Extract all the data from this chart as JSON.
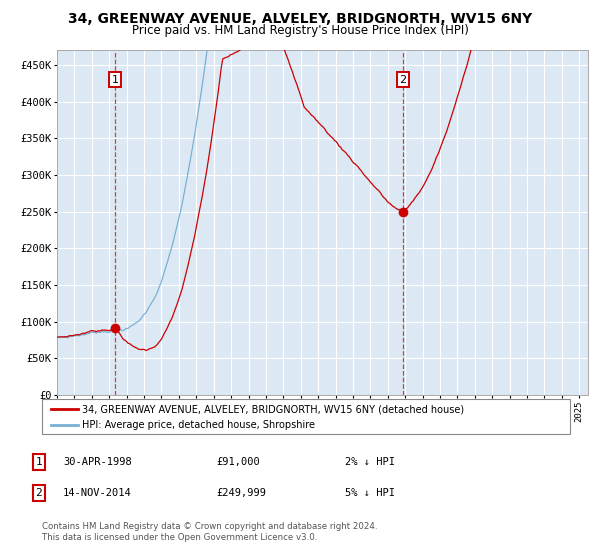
{
  "title": "34, GREENWAY AVENUE, ALVELEY, BRIDGNORTH, WV15 6NY",
  "subtitle": "Price paid vs. HM Land Registry's House Price Index (HPI)",
  "title_fontsize": 10,
  "subtitle_fontsize": 8.5,
  "plot_bg_color": "#dce9f5",
  "fig_bg_color": "#ffffff",
  "red_line_color": "#cc0000",
  "blue_line_color": "#7ab0d4",
  "grid_color": "#ffffff",
  "ylim": [
    0,
    470000
  ],
  "yticks": [
    0,
    50000,
    100000,
    150000,
    200000,
    250000,
    300000,
    350000,
    400000,
    450000
  ],
  "purchase1_year": 1998.33,
  "purchase1_price": 91000,
  "purchase2_year": 2014.87,
  "purchase2_price": 249999,
  "legend_line1": "34, GREENWAY AVENUE, ALVELEY, BRIDGNORTH, WV15 6NY (detached house)",
  "legend_line2": "HPI: Average price, detached house, Shropshire",
  "annotation1_date": "30-APR-1998",
  "annotation1_price": "£91,000",
  "annotation1_hpi": "2% ↓ HPI",
  "annotation2_date": "14-NOV-2014",
  "annotation2_price": "£249,999",
  "annotation2_hpi": "5% ↓ HPI",
  "footer1": "Contains HM Land Registry data © Crown copyright and database right 2024.",
  "footer2": "This data is licensed under the Open Government Licence v3.0.",
  "xstart": 1995.0,
  "xend": 2025.5
}
